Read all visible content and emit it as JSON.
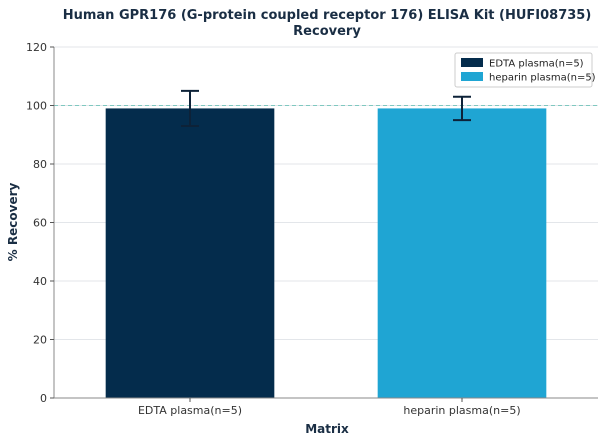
{
  "chart_data": {
    "type": "bar",
    "title_line1": "Human GPR176 (G-protein coupled receptor 176) ELISA Kit (HUFI08735)",
    "title_line2": "Recovery",
    "xlabel": "Matrix",
    "ylabel": "% Recovery",
    "categories": [
      "EDTA plasma(n=5)",
      "heparin plasma(n=5)"
    ],
    "values": [
      99,
      99
    ],
    "errors": [
      6,
      4
    ],
    "colors": [
      "#042c4c",
      "#1fa5d3"
    ],
    "ylim": [
      0,
      120
    ],
    "yticks": [
      0,
      20,
      40,
      60,
      80,
      100,
      120
    ],
    "reference_line": 100,
    "grid": true,
    "legend_position": "top-right",
    "legend": [
      "EDTA plasma(n=5)",
      "heparin plasma(n=5)"
    ]
  }
}
